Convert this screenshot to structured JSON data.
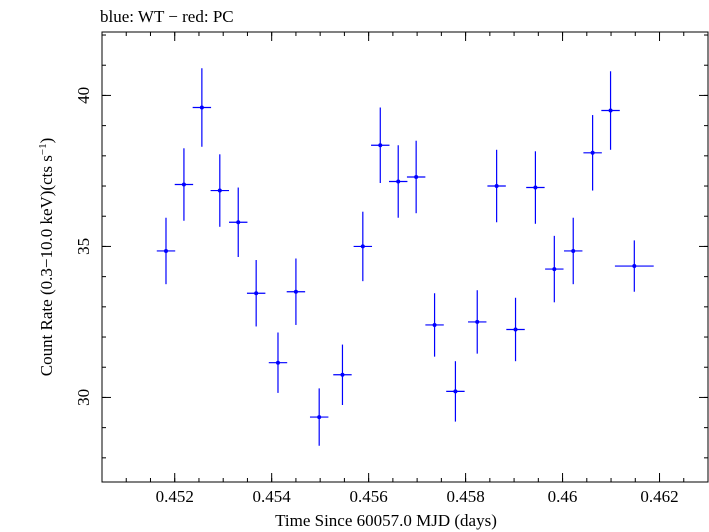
{
  "chart_data": {
    "type": "scatter",
    "title": "blue: WT − red: PC",
    "xlabel": "Time Since 60057.0 MJD (days)",
    "ylabel": "Count Rate (0.3−10.0 keV)(cts s",
    "ylabel_sup": "−1",
    "ylabel_tail": ")",
    "xlim": [
      0.4505,
      0.463
    ],
    "ylim": [
      27.2,
      42.1
    ],
    "xticks": [
      0.452,
      0.454,
      0.456,
      0.458,
      0.46,
      0.462
    ],
    "xtick_labels": [
      "0.452",
      "0.454",
      "0.456",
      "0.458",
      "0.46",
      "0.462"
    ],
    "xtick_minor_step": 0.0005,
    "yticks": [
      30,
      35,
      40
    ],
    "ytick_labels": [
      "30",
      "35",
      "40"
    ],
    "ytick_minor_step": 1,
    "grid": false,
    "series": [
      {
        "color": "#0000ff",
        "points": [
          {
            "x": 0.45182,
            "y": 34.85,
            "xerr": 0.00019,
            "yerr": 1.1
          },
          {
            "x": 0.45219,
            "y": 37.05,
            "xerr": 0.00019,
            "yerr": 1.2
          },
          {
            "x": 0.45256,
            "y": 39.6,
            "xerr": 0.00019,
            "yerr": 1.3
          },
          {
            "x": 0.45293,
            "y": 36.85,
            "xerr": 0.00019,
            "yerr": 1.2
          },
          {
            "x": 0.45331,
            "y": 35.8,
            "xerr": 0.00019,
            "yerr": 1.15
          },
          {
            "x": 0.45368,
            "y": 33.45,
            "xerr": 0.00019,
            "yerr": 1.1
          },
          {
            "x": 0.45413,
            "y": 31.15,
            "xerr": 0.00019,
            "yerr": 1.0
          },
          {
            "x": 0.4545,
            "y": 33.5,
            "xerr": 0.00019,
            "yerr": 1.1
          },
          {
            "x": 0.45498,
            "y": 29.35,
            "xerr": 0.00019,
            "yerr": 0.95
          },
          {
            "x": 0.45546,
            "y": 30.75,
            "xerr": 0.00019,
            "yerr": 1.0
          },
          {
            "x": 0.45588,
            "y": 35.0,
            "xerr": 0.00019,
            "yerr": 1.15
          },
          {
            "x": 0.45624,
            "y": 38.35,
            "xerr": 0.00019,
            "yerr": 1.25
          },
          {
            "x": 0.45661,
            "y": 37.15,
            "xerr": 0.00019,
            "yerr": 1.2
          },
          {
            "x": 0.45698,
            "y": 37.3,
            "xerr": 0.00019,
            "yerr": 1.2
          },
          {
            "x": 0.45736,
            "y": 32.4,
            "xerr": 0.00019,
            "yerr": 1.05
          },
          {
            "x": 0.45779,
            "y": 30.2,
            "xerr": 0.00019,
            "yerr": 1.0
          },
          {
            "x": 0.45824,
            "y": 32.5,
            "xerr": 0.00019,
            "yerr": 1.05
          },
          {
            "x": 0.45864,
            "y": 37.0,
            "xerr": 0.00019,
            "yerr": 1.2
          },
          {
            "x": 0.45903,
            "y": 32.25,
            "xerr": 0.00019,
            "yerr": 1.05
          },
          {
            "x": 0.45944,
            "y": 36.95,
            "xerr": 0.00019,
            "yerr": 1.2
          },
          {
            "x": 0.45983,
            "y": 34.25,
            "xerr": 0.00019,
            "yerr": 1.1
          },
          {
            "x": 0.46022,
            "y": 34.85,
            "xerr": 0.00019,
            "yerr": 1.1
          },
          {
            "x": 0.46062,
            "y": 38.1,
            "xerr": 0.00019,
            "yerr": 1.25
          },
          {
            "x": 0.46099,
            "y": 39.5,
            "xerr": 0.00019,
            "yerr": 1.3
          },
          {
            "x": 0.46148,
            "y": 34.35,
            "xerr": 0.0004,
            "yerr": 0.85
          }
        ]
      }
    ]
  }
}
